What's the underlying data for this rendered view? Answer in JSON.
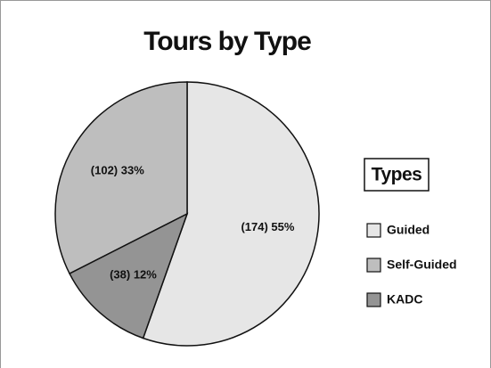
{
  "chart_data": {
    "type": "pie",
    "title": "Tours by Type",
    "legend_title": "Types",
    "categories": [
      "Guided",
      "Self-Guided",
      "KADC"
    ],
    "values": [
      174,
      102,
      38
    ],
    "value_labels": [
      "(174) 55%",
      "(102) 33%",
      "(38) 12%"
    ],
    "colors": [
      "#e6e6e6",
      "#bebebe",
      "#949494"
    ],
    "legend": "right"
  }
}
